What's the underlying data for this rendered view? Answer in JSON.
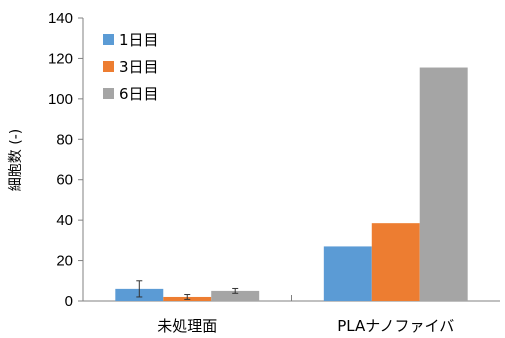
{
  "chart_data": {
    "type": "bar",
    "categories": [
      "未処理面",
      "PLAナノファイバ"
    ],
    "series": [
      {
        "name": "1日目",
        "values": [
          6,
          27
        ],
        "color": "#5b9bd5",
        "error": [
          4,
          null
        ]
      },
      {
        "name": "3日目",
        "values": [
          2,
          38.5
        ],
        "color": "#ed7d31",
        "error": [
          1.2,
          null
        ]
      },
      {
        "name": "6日目",
        "values": [
          5,
          115.5
        ],
        "color": "#a5a5a5",
        "error": [
          1.2,
          null
        ]
      }
    ],
    "title": "",
    "xlabel": "",
    "ylabel": "細胞数 (-)",
    "ylim": [
      0,
      140
    ],
    "yticks": [
      0,
      20,
      40,
      60,
      80,
      100,
      120,
      140
    ],
    "grid": false,
    "legend": "top-left"
  }
}
